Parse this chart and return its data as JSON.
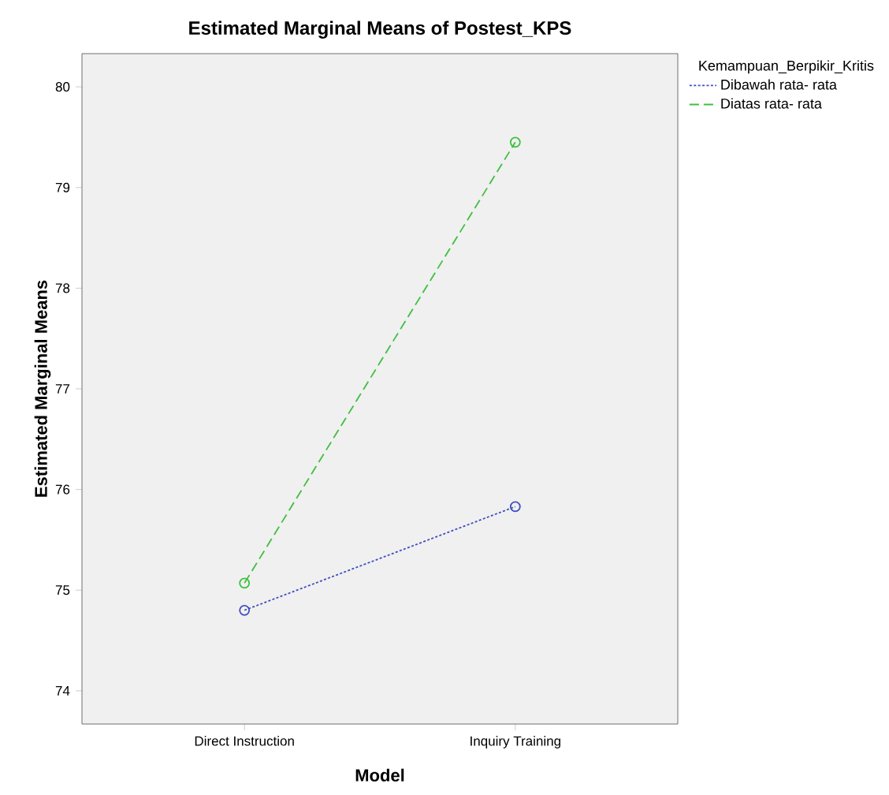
{
  "chart_data": {
    "type": "line",
    "title": "Estimated Marginal Means of Postest_KPS",
    "xlabel": "Model",
    "ylabel": "Estimated Marginal Means",
    "legend_title": "Kemampuan_Berpikir_Kritis",
    "categories": [
      "Direct Instruction",
      "Inquiry Training"
    ],
    "series": [
      {
        "name": "Dibawah rata- rata",
        "color": "#3f4fbf",
        "values": [
          74.8,
          75.83
        ],
        "line_style": "dotted"
      },
      {
        "name": "Diatas rata- rata",
        "color": "#3fbf3f",
        "values": [
          75.07,
          79.45
        ],
        "line_style": "dashed"
      }
    ],
    "ylim": [
      73.67,
      80.33
    ],
    "yticks": [
      74,
      75,
      76,
      77,
      78,
      79,
      80
    ],
    "marker": "circle",
    "legend": "top right",
    "grid": false
  }
}
